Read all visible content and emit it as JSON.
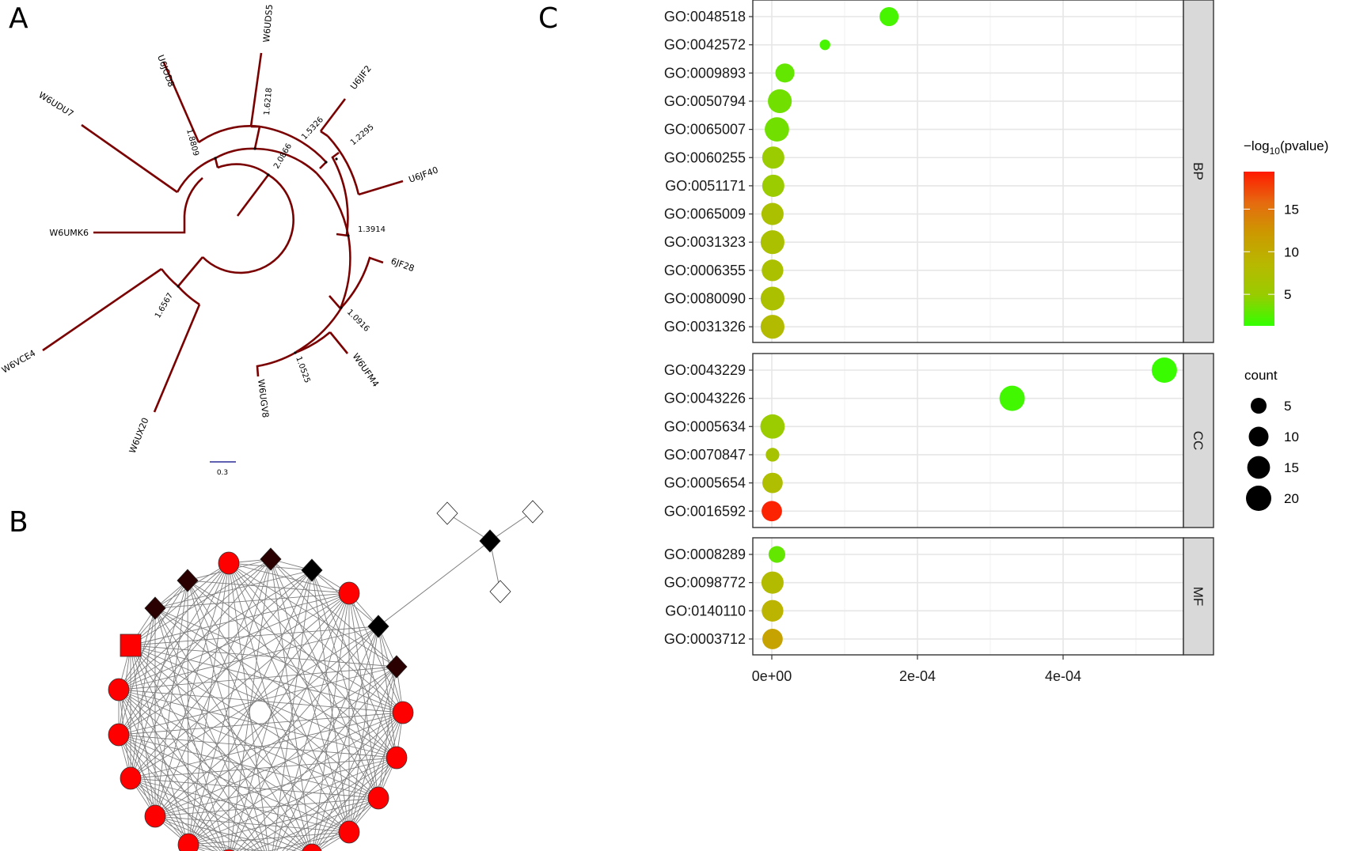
{
  "panel_labels": {
    "a": "A",
    "b": "B",
    "c": "C"
  },
  "tree": {
    "branch_color": "#7a0000",
    "tips": [
      "U6JOD8",
      "W6UDS5",
      "U6JIF2",
      "U6JF40",
      "6JF28",
      "W6UFM4",
      "W6UGV8",
      "W6UX20",
      "W6VCE4",
      "W6UMK6",
      "W6UDU7"
    ],
    "support_values": [
      "1.8809",
      "1.6218",
      "1.5326",
      "1.2295",
      "2.0866",
      "1.3914",
      "1.0916",
      "1.0525",
      "1.6567"
    ],
    "scale_bar_label": "0.3",
    "scale_bar_color": "#2b2b9a"
  },
  "network": {
    "node_colors": {
      "red": "#ff0000",
      "dark": "#2a0000",
      "black": "#000000",
      "white": "#ffffff"
    },
    "edge_color": "#7f7f7f"
  },
  "chart_data": {
    "type": "scatter",
    "title": "",
    "xlabel": "",
    "ylabel": "",
    "xlim": [
      -1.7e-05,
      0.000564
    ],
    "x_ticks": [
      "0e+00",
      "2e-04",
      "4e-04"
    ],
    "x_tick_values": [
      0,
      0.0002,
      0.0004
    ],
    "facets": [
      {
        "name": "BP",
        "terms": [
          {
            "id": "GO:0048518",
            "x": 0.000161,
            "count": 9,
            "neglog10p": 2.0
          },
          {
            "id": "GO:0042572",
            "x": 7.3e-05,
            "count": 1,
            "neglog10p": 2.0
          },
          {
            "id": "GO:0009893",
            "x": 1.8e-05,
            "count": 9,
            "neglog10p": 3.0
          },
          {
            "id": "GO:0050794",
            "x": 1.1e-05,
            "count": 17,
            "neglog10p": 3.5
          },
          {
            "id": "GO:0065007",
            "x": 7e-06,
            "count": 18,
            "neglog10p": 3.5
          },
          {
            "id": "GO:0060255",
            "x": 2e-06,
            "count": 14,
            "neglog10p": 5.0
          },
          {
            "id": "GO:0051171",
            "x": 2e-06,
            "count": 14,
            "neglog10p": 5.0
          },
          {
            "id": "GO:0065009",
            "x": 1e-06,
            "count": 14,
            "neglog10p": 7.0
          },
          {
            "id": "GO:0031323",
            "x": 1e-06,
            "count": 17,
            "neglog10p": 7.0
          },
          {
            "id": "GO:0006355",
            "x": 1e-06,
            "count": 13,
            "neglog10p": 7.0
          },
          {
            "id": "GO:0080090",
            "x": 1e-06,
            "count": 17,
            "neglog10p": 7.0
          },
          {
            "id": "GO:0031326",
            "x": 1e-06,
            "count": 17,
            "neglog10p": 8.0
          }
        ]
      },
      {
        "name": "CC",
        "terms": [
          {
            "id": "GO:0043229",
            "x": 0.000539,
            "count": 20,
            "neglog10p": 1.5
          },
          {
            "id": "GO:0043226",
            "x": 0.00033,
            "count": 20,
            "neglog10p": 1.8
          },
          {
            "id": "GO:0005634",
            "x": 1e-06,
            "count": 18,
            "neglog10p": 5.0
          },
          {
            "id": "GO:0070847",
            "x": 1e-06,
            "count": 3,
            "neglog10p": 6.5
          },
          {
            "id": "GO:0005654",
            "x": 1e-06,
            "count": 11,
            "neglog10p": 7.5
          },
          {
            "id": "GO:0016592",
            "x": 0.0,
            "count": 11,
            "neglog10p": 19.0
          }
        ]
      },
      {
        "name": "MF",
        "terms": [
          {
            "id": "GO:0008289",
            "x": 7e-06,
            "count": 6,
            "neglog10p": 3.0
          },
          {
            "id": "GO:0098772",
            "x": 1e-06,
            "count": 14,
            "neglog10p": 8.0
          },
          {
            "id": "GO:0140110",
            "x": 1e-06,
            "count": 13,
            "neglog10p": 9.0
          },
          {
            "id": "GO:0003712",
            "x": 1e-06,
            "count": 11,
            "neglog10p": 11.0
          }
        ]
      }
    ],
    "color_legend": {
      "title_prefix": "−log",
      "title_sub": "10",
      "title_suffix": "(pvalue)",
      "range": [
        1.3,
        19.4
      ],
      "ticks": [
        "5",
        "10",
        "15"
      ],
      "tick_values": [
        5,
        10,
        15
      ],
      "colors": [
        "#33ff00",
        "#99cc00",
        "#b8b800",
        "#cc9900",
        "#e66a10",
        "#ff1a00"
      ]
    },
    "size_legend": {
      "title": "count",
      "labels": [
        "5",
        "10",
        "15",
        "20"
      ],
      "values": [
        5,
        10,
        15,
        20
      ]
    }
  }
}
